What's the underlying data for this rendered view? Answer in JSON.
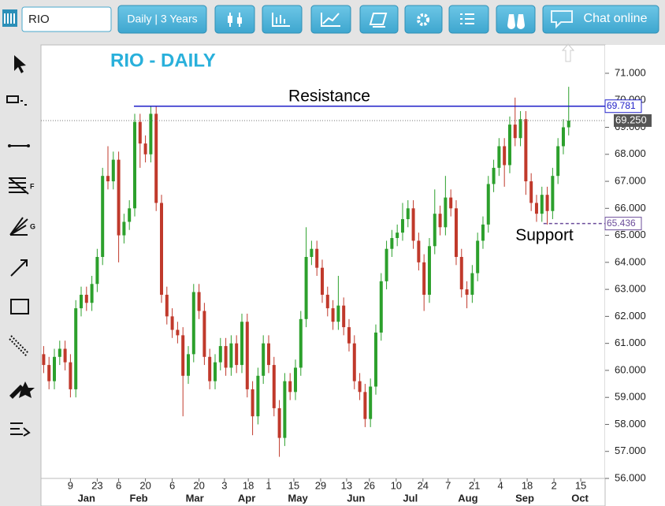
{
  "ui": {
    "symbol": "RIO",
    "period": "Daily | 3 Years",
    "chat": "Chat online",
    "tool_letters": [
      "F",
      "G"
    ]
  },
  "chart_data": {
    "type": "candlestick",
    "title": "RIO - DAILY",
    "up_color": "#2ca02c",
    "down_color": "#c0392b",
    "xlim": [
      0,
      210.6
    ],
    "ylim": [
      56,
      72.05
    ],
    "yticks": [
      {
        "value": 56,
        "label": "56.000"
      },
      {
        "value": 57,
        "label": "57.000"
      },
      {
        "value": 58,
        "label": "58.000"
      },
      {
        "value": 59,
        "label": "59.000"
      },
      {
        "value": 60,
        "label": "60.000"
      },
      {
        "value": 61,
        "label": "61.000"
      },
      {
        "value": 62,
        "label": "62.000"
      },
      {
        "value": 63,
        "label": "63.000"
      },
      {
        "value": 64,
        "label": "64.000"
      },
      {
        "value": 65,
        "label": "65.000"
      },
      {
        "value": 66,
        "label": "66.000"
      },
      {
        "value": 67,
        "label": "67.000"
      },
      {
        "value": 68,
        "label": "68.000"
      },
      {
        "value": 69,
        "label": "69.000"
      },
      {
        "value": 70,
        "label": "70.000"
      },
      {
        "value": 71,
        "label": "71.000"
      }
    ],
    "xticks": [
      {
        "value": 11,
        "label": "9"
      },
      {
        "value": 21,
        "label": "23"
      },
      {
        "value": 29,
        "label": "6"
      },
      {
        "value": 39,
        "label": "20"
      },
      {
        "value": 49,
        "label": "6"
      },
      {
        "value": 59,
        "label": "20"
      },
      {
        "value": 68.5,
        "label": "3"
      },
      {
        "value": 77.4,
        "label": "18"
      },
      {
        "value": 85,
        "label": "1"
      },
      {
        "value": 94.4,
        "label": "15"
      },
      {
        "value": 104.4,
        "label": "29"
      },
      {
        "value": 114.1,
        "label": "13"
      },
      {
        "value": 122.6,
        "label": "26"
      },
      {
        "value": 132.6,
        "label": "10"
      },
      {
        "value": 142.6,
        "label": "24"
      },
      {
        "value": 152,
        "label": "7"
      },
      {
        "value": 161.8,
        "label": "21"
      },
      {
        "value": 171.5,
        "label": "4"
      },
      {
        "value": 181.5,
        "label": "18"
      },
      {
        "value": 191.5,
        "label": "2"
      },
      {
        "value": 201.5,
        "label": "15"
      }
    ],
    "month_ticks": [
      {
        "value": 17,
        "label": "Jan"
      },
      {
        "value": 36.5,
        "label": "Feb"
      },
      {
        "value": 57.4,
        "label": "Mar"
      },
      {
        "value": 76.8,
        "label": "Apr"
      },
      {
        "value": 95.9,
        "label": "May"
      },
      {
        "value": 117.6,
        "label": "Jun"
      },
      {
        "value": 137.9,
        "label": "Jul"
      },
      {
        "value": 159.4,
        "label": "Aug"
      },
      {
        "value": 180.6,
        "label": "Sep"
      },
      {
        "value": 201.2,
        "label": "Oct"
      }
    ],
    "x": [
      1,
      3,
      5,
      7,
      9,
      11,
      13,
      15,
      17,
      19,
      21,
      23,
      25,
      27,
      29,
      31,
      33,
      35,
      37,
      39,
      41,
      43,
      45,
      47,
      49,
      51,
      53,
      55,
      57,
      59,
      61,
      63,
      65,
      67,
      69,
      71,
      73,
      75,
      77,
      79,
      81,
      83,
      85,
      87,
      89,
      91,
      93,
      95,
      97,
      99,
      101,
      103,
      105,
      107,
      109,
      111,
      113,
      115,
      117,
      119,
      121,
      123,
      125,
      127,
      129,
      131,
      133,
      135,
      137,
      139,
      141,
      143,
      145,
      147,
      149,
      151,
      153,
      155,
      157,
      159,
      161,
      163,
      165,
      167,
      169,
      171,
      173,
      175,
      177,
      179,
      181,
      183,
      185,
      187,
      189,
      191,
      193,
      195,
      197
    ],
    "open": [
      60.6,
      60.2,
      59.6,
      60.5,
      60.8,
      60.3,
      59.3,
      62.3,
      62.8,
      62.5,
      63.2,
      64.2,
      67.2,
      67.0,
      67.8,
      65.0,
      65.5,
      66.0,
      69.2,
      68.4,
      68.0,
      69.5,
      66.2,
      62.8,
      62.0,
      61.5,
      61.3,
      59.8,
      60.6,
      62.9,
      62.2,
      60.5,
      59.6,
      60.3,
      60.9,
      60.1,
      61.0,
      60.2,
      61.8,
      59.3,
      58.3,
      59.8,
      61.0,
      60.2,
      58.6,
      57.5,
      59.6,
      59.2,
      60.1,
      61.9,
      64.2,
      64.5,
      63.8,
      62.8,
      62.3,
      61.8,
      62.4,
      61.6,
      61.0,
      59.6,
      59.2,
      58.2,
      59.4,
      61.4,
      63.3,
      64.5,
      64.9,
      65.1,
      65.6,
      66.0,
      64.8,
      64.0,
      62.8,
      64.6,
      65.8,
      65.3,
      66.4,
      66.0,
      64.2,
      63.0,
      62.8,
      63.6,
      64.8,
      65.4,
      66.9,
      67.5,
      68.3,
      67.6,
      69.1,
      68.6,
      69.3,
      67.0,
      66.2,
      65.8,
      66.5,
      65.9,
      67.2,
      68.3,
      69.0
    ],
    "high": [
      60.9,
      60.5,
      60.8,
      61.1,
      61.1,
      60.6,
      62.6,
      63.1,
      63.1,
      63.5,
      64.5,
      67.5,
      68.3,
      68.1,
      68.1,
      65.8,
      66.3,
      69.5,
      69.5,
      68.7,
      69.8,
      69.8,
      66.5,
      63.1,
      62.3,
      61.8,
      61.6,
      60.9,
      63.2,
      63.2,
      62.5,
      60.8,
      60.6,
      61.2,
      61.2,
      61.3,
      61.3,
      62.1,
      62.1,
      59.6,
      60.1,
      61.3,
      61.3,
      60.5,
      58.9,
      59.9,
      59.9,
      60.4,
      62.2,
      65.3,
      64.8,
      64.8,
      64.1,
      63.1,
      62.6,
      63.5,
      62.7,
      61.9,
      61.3,
      59.9,
      59.5,
      59.7,
      61.7,
      63.6,
      64.8,
      65.2,
      65.4,
      66.2,
      66.3,
      66.3,
      65.1,
      64.3,
      64.9,
      66.7,
      66.1,
      67.2,
      66.7,
      66.3,
      64.5,
      63.3,
      63.9,
      65.1,
      65.7,
      67.2,
      67.8,
      68.6,
      68.6,
      69.4,
      70.1,
      69.6,
      69.6,
      67.3,
      66.5,
      66.8,
      66.8,
      67.5,
      68.6,
      69.3,
      70.5
    ],
    "low": [
      59.9,
      59.3,
      59.3,
      60.2,
      60.0,
      59.0,
      59.0,
      62.0,
      62.2,
      62.2,
      62.9,
      63.9,
      66.7,
      66.7,
      64.0,
      64.7,
      65.2,
      65.7,
      67.5,
      67.7,
      67.7,
      65.9,
      62.5,
      61.7,
      61.2,
      61.0,
      58.3,
      59.5,
      60.3,
      61.9,
      60.2,
      59.3,
      59.3,
      60.0,
      59.8,
      59.8,
      59.9,
      59.9,
      59.0,
      57.6,
      58.0,
      59.5,
      59.9,
      58.3,
      56.8,
      57.2,
      58.9,
      58.9,
      59.8,
      61.6,
      63.9,
      63.5,
      62.5,
      62.0,
      61.5,
      61.5,
      61.3,
      60.7,
      59.3,
      58.9,
      57.9,
      57.9,
      59.1,
      61.1,
      63.0,
      64.2,
      64.6,
      64.8,
      65.3,
      64.5,
      63.7,
      62.2,
      62.5,
      64.3,
      65.0,
      65.0,
      65.7,
      63.9,
      62.7,
      62.3,
      62.5,
      63.3,
      64.5,
      65.1,
      66.6,
      67.2,
      66.8,
      67.3,
      68.3,
      68.3,
      66.5,
      65.9,
      65.5,
      65.5,
      65.4,
      65.6,
      66.9,
      68.0,
      68.7
    ],
    "close": [
      60.2,
      59.6,
      60.5,
      60.8,
      60.3,
      59.3,
      62.3,
      62.8,
      62.5,
      63.2,
      64.2,
      67.2,
      67.0,
      67.8,
      65.0,
      65.5,
      66.0,
      69.2,
      68.4,
      68.0,
      69.5,
      66.2,
      62.8,
      62.0,
      61.5,
      61.3,
      59.8,
      60.6,
      62.9,
      62.2,
      60.5,
      59.6,
      60.3,
      60.9,
      60.1,
      61.0,
      60.2,
      61.8,
      59.3,
      58.3,
      59.8,
      61.0,
      60.2,
      58.6,
      57.5,
      59.6,
      59.2,
      60.1,
      61.9,
      64.2,
      64.5,
      63.8,
      62.8,
      62.3,
      61.8,
      62.4,
      61.6,
      61.0,
      59.6,
      59.2,
      58.2,
      59.4,
      61.4,
      63.3,
      64.5,
      64.9,
      65.1,
      65.6,
      66.0,
      64.8,
      64.0,
      62.8,
      64.6,
      65.8,
      65.3,
      66.4,
      66.0,
      64.2,
      63.0,
      62.8,
      63.6,
      64.8,
      65.4,
      66.9,
      67.5,
      68.3,
      67.6,
      69.1,
      68.6,
      69.3,
      67.0,
      66.2,
      65.8,
      66.5,
      65.9,
      67.2,
      68.3,
      69.0,
      69.25
    ],
    "resistance": {
      "value": 69.781,
      "x_start": 34.7,
      "text": "Resistance",
      "color": "#1f1fc8"
    },
    "support": {
      "value": 65.436,
      "x_start": 187.6,
      "text": "Support",
      "color": "#6b4c9a"
    },
    "last_price": {
      "value": 69.25,
      "label": "69.250"
    }
  }
}
